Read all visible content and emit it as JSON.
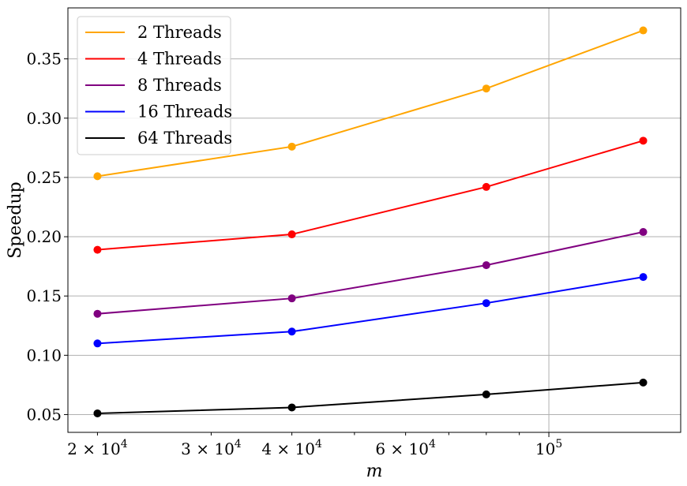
{
  "chart_data": {
    "type": "line",
    "xlabel": "m",
    "ylabel": "Speedup",
    "x_scale": "log",
    "xlim": [
      18000,
      160000
    ],
    "ylim": [
      0.035,
      0.393
    ],
    "grid": true,
    "legend_position": "top-left",
    "x": [
      20000,
      40000,
      80000,
      140000
    ],
    "x_ticks": [
      {
        "value": 20000,
        "mantissa": "2",
        "base": "10",
        "exp": "4"
      },
      {
        "value": 30000,
        "mantissa": "3",
        "base": "10",
        "exp": "4"
      },
      {
        "value": 40000,
        "mantissa": "4",
        "base": "10",
        "exp": "4"
      },
      {
        "value": 60000,
        "mantissa": "6",
        "base": "10",
        "exp": "4"
      },
      {
        "value": 100000,
        "mantissa": "",
        "base": "10",
        "exp": "5"
      }
    ],
    "y_ticks": [
      "0.05",
      "0.10",
      "0.15",
      "0.20",
      "0.25",
      "0.30",
      "0.35"
    ],
    "series": [
      {
        "name": "2 Threads",
        "color": "#FFA500",
        "values": [
          0.251,
          0.276,
          0.325,
          0.374
        ]
      },
      {
        "name": "4 Threads",
        "color": "#FF0000",
        "values": [
          0.189,
          0.202,
          0.242,
          0.281
        ]
      },
      {
        "name": "8 Threads",
        "color": "#800080",
        "values": [
          0.135,
          0.148,
          0.176,
          0.204
        ]
      },
      {
        "name": "16 Threads",
        "color": "#0000FF",
        "values": [
          0.11,
          0.12,
          0.144,
          0.166
        ]
      },
      {
        "name": "64 Threads",
        "color": "#000000",
        "values": [
          0.051,
          0.056,
          0.067,
          0.077
        ]
      }
    ]
  }
}
